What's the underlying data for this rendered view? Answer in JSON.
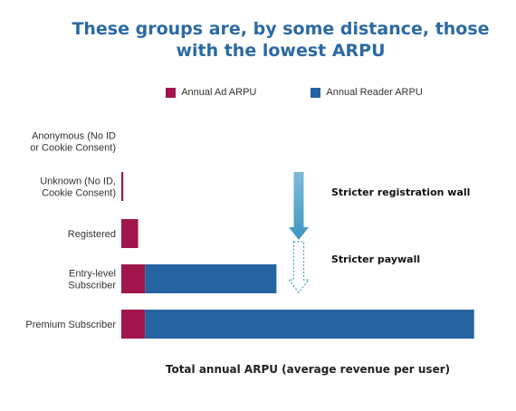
{
  "chart_data": {
    "type": "bar",
    "orientation": "horizontal",
    "stacked": true,
    "title": "These groups are, by some distance, those with the lowest ARPU",
    "xlabel": "Total annual ARPU (average revenue per user)",
    "ylabel": "",
    "categories": [
      [
        "Anonymous (No ID",
        "or Cookie Consent)"
      ],
      [
        "Unknown (No ID,",
        "Cookie Consent)"
      ],
      [
        "Registered"
      ],
      [
        "Entry-level",
        "Subscriber"
      ],
      [
        "Premium Subscriber"
      ]
    ],
    "series": [
      {
        "name": "Annual Ad ARPU",
        "color": "#a0164a",
        "values": [
          0,
          2,
          17,
          24,
          24
        ]
      },
      {
        "name": "Annual Reader ARPU",
        "color": "#2563a1",
        "values": [
          0,
          0,
          0,
          133,
          333
        ]
      }
    ],
    "xlim": [
      0,
      360
    ],
    "grid": false,
    "axes_visible": false,
    "legend_position": "top",
    "annotations": [
      {
        "text": "Stricter registration wall",
        "from_category": 1,
        "to_category": 2,
        "arrow": "solid",
        "color": "#4ea3c9"
      },
      {
        "text": "Stricter paywall",
        "from_category": 2,
        "to_category": 3,
        "arrow": "dashed",
        "color": "#4ea3c9"
      }
    ]
  }
}
